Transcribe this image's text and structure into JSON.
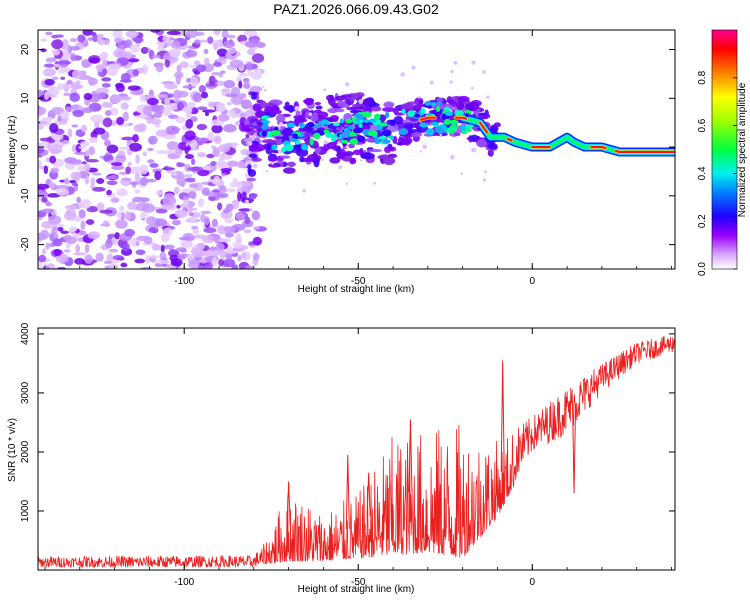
{
  "title": "PAZ1.2026.066.09.43.G02",
  "chart_data": [
    {
      "type": "heatmap",
      "name": "spectrogram",
      "xlabel": "Height of straight line (km)",
      "ylabel": "Frequency (Hz)",
      "xlim": [
        -142,
        41
      ],
      "ylim": [
        -25,
        24
      ],
      "xticks": [
        -100,
        -50,
        0
      ],
      "yticks": [
        -20,
        -10,
        0,
        10,
        20
      ],
      "noise_region_x": [
        -142,
        -78
      ],
      "signal_track": [
        {
          "x": -80,
          "y": 5
        },
        {
          "x": -75,
          "y": 3
        },
        {
          "x": -70,
          "y": 2
        },
        {
          "x": -65,
          "y": 3
        },
        {
          "x": -60,
          "y": 4
        },
        {
          "x": -55,
          "y": 4
        },
        {
          "x": -50,
          "y": 4
        },
        {
          "x": -45,
          "y": 4
        },
        {
          "x": -40,
          "y": 4
        },
        {
          "x": -35,
          "y": 5
        },
        {
          "x": -30,
          "y": 6
        },
        {
          "x": -25,
          "y": 6
        },
        {
          "x": -20,
          "y": 6
        },
        {
          "x": -15,
          "y": 5
        },
        {
          "x": -12,
          "y": 2
        },
        {
          "x": -8,
          "y": 2
        },
        {
          "x": -5,
          "y": 1
        },
        {
          "x": 0,
          "y": 0
        },
        {
          "x": 5,
          "y": 0
        },
        {
          "x": 10,
          "y": 2
        },
        {
          "x": 12,
          "y": 1
        },
        {
          "x": 15,
          "y": 0
        },
        {
          "x": 20,
          "y": 0
        },
        {
          "x": 25,
          "y": -1
        },
        {
          "x": 30,
          "y": -1
        },
        {
          "x": 41,
          "y": -1
        }
      ],
      "colorbar": {
        "label": "Normalized spectral amplitude",
        "range": [
          0,
          1
        ],
        "ticks": [
          "0.0",
          "0.2",
          "0.4",
          "0.6",
          "0.8"
        ]
      },
      "colors": {
        "noise": "#8a2be2",
        "colormap": [
          "#ffffff",
          "#b000ff",
          "#3000ff",
          "#00e0ff",
          "#00ff40",
          "#ffff00",
          "#ff8000",
          "#ff0000",
          "#ff0090"
        ]
      }
    },
    {
      "type": "line",
      "name": "snr",
      "xlabel": "Height of straight line (km)",
      "ylabel": "SNR (10 * v/v)",
      "xlim": [
        -142,
        41
      ],
      "ylim": [
        0,
        4100
      ],
      "xticks": [
        -100,
        -50,
        0
      ],
      "yticks": [
        1000,
        2000,
        3000,
        4000
      ],
      "color": "#e8211f",
      "envelope": [
        {
          "x": -142,
          "min": 50,
          "max": 230
        },
        {
          "x": -80,
          "min": 50,
          "max": 250
        },
        {
          "x": -77,
          "min": 100,
          "max": 450
        },
        {
          "x": -70,
          "min": 150,
          "max": 1400
        },
        {
          "x": -60,
          "min": 150,
          "max": 1000
        },
        {
          "x": -50,
          "min": 200,
          "max": 1300
        },
        {
          "x": -40,
          "min": 250,
          "max": 2300
        },
        {
          "x": -30,
          "min": 300,
          "max": 2400
        },
        {
          "x": -20,
          "min": 200,
          "max": 2500
        },
        {
          "x": -10,
          "min": 900,
          "max": 2200
        },
        {
          "x": 0,
          "min": 2000,
          "max": 2600
        },
        {
          "x": 10,
          "min": 2300,
          "max": 3100
        },
        {
          "x": 20,
          "min": 3000,
          "max": 3500
        },
        {
          "x": 30,
          "min": 3500,
          "max": 3850
        },
        {
          "x": 41,
          "min": 3700,
          "max": 4000
        }
      ],
      "spikes": [
        {
          "x": -53,
          "y": 1950
        },
        {
          "x": -35,
          "y": 2550
        },
        {
          "x": -8.5,
          "y": 3550
        },
        {
          "x": 12,
          "y": 1300
        },
        {
          "x": -47,
          "y": 1650
        },
        {
          "x": -70,
          "y": 1500
        }
      ]
    }
  ]
}
